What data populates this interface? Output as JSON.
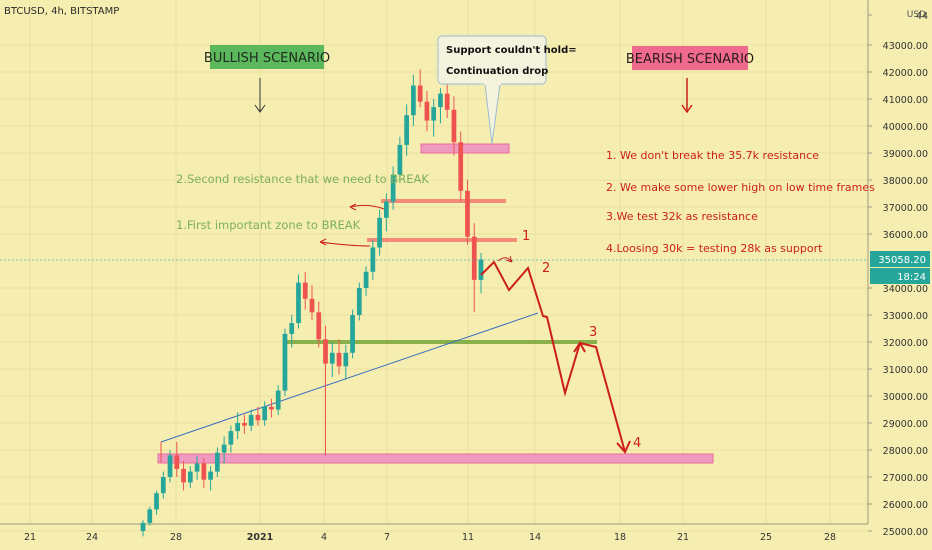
{
  "header": {
    "symbol_label": "BTCUSD, 4h, BITSTAMP"
  },
  "chart_data": {
    "type": "candlestick",
    "currency": "USD",
    "y_tick_labels": [
      "44",
      "43000.00",
      "42000.00",
      "41000.00",
      "40000.00",
      "39000.00",
      "38000.00",
      "37000.00",
      "36000.00",
      "34000.00",
      "33000.00",
      "32000.00",
      "31000.00",
      "30000.00",
      "29000.00",
      "28000.00",
      "27000.00",
      "26000.00",
      "25000.00"
    ],
    "x_tick_labels": [
      "21",
      "24",
      "28",
      "2021",
      "4",
      "7",
      "11",
      "14",
      "18",
      "21",
      "25",
      "28"
    ],
    "last_price": "35058.20",
    "countdown": "18:24",
    "colors": {
      "up": "#26a69a",
      "down": "#ef5350",
      "annotation": "#cc1f1a",
      "green_text": "#7db05a",
      "support_zone": "#ef9ac0",
      "resistance_line": "#f28b78",
      "support_line": "#8ab04a",
      "trendline": "#3a6fc0"
    },
    "annotations": {
      "bullish_title": "BULLISH SCENARIO",
      "bearish_title": "BEARISH SCENARIO",
      "callout_line1": "Support couldn't hold=",
      "callout_line2": "Continuation drop",
      "second_resistance": "2.Second resistance that we need to BREAK",
      "first_zone": "1.First important zone to BREAK",
      "bearish_points": [
        "1. We don't break the 35.7k resistance",
        "2. We make some lower high on low time frames",
        "3.We test 32k as resistance",
        "4.Loosing 30k = testing 28k as support"
      ],
      "path_labels": [
        "1",
        "2",
        "3",
        "4"
      ]
    },
    "levels": {
      "resistance_1": 35700,
      "resistance_2": 37300,
      "support_32k": 32000,
      "support_28k": 27800,
      "zone_top": 39200
    },
    "price_series_ohlc": [
      [
        25000,
        25400,
        24800,
        25300
      ],
      [
        25300,
        25900,
        25200,
        25800
      ],
      [
        25800,
        26500,
        25600,
        26400
      ],
      [
        26400,
        27200,
        26200,
        27000
      ],
      [
        27000,
        28000,
        26800,
        27800
      ],
      [
        27800,
        28300,
        27000,
        27300
      ],
      [
        27300,
        27600,
        26500,
        26800
      ],
      [
        26800,
        27400,
        26600,
        27200
      ],
      [
        27200,
        27800,
        26900,
        27500
      ],
      [
        27500,
        27700,
        26600,
        26900
      ],
      [
        26900,
        27400,
        26500,
        27200
      ],
      [
        27200,
        28100,
        27000,
        27900
      ],
      [
        27900,
        28500,
        27500,
        28200
      ],
      [
        28200,
        28900,
        27900,
        28700
      ],
      [
        28700,
        29400,
        28400,
        29000
      ],
      [
        29000,
        29300,
        28600,
        28900
      ],
      [
        28900,
        29500,
        28700,
        29300
      ],
      [
        29300,
        29600,
        28900,
        29100
      ],
      [
        29100,
        29800,
        28900,
        29600
      ],
      [
        29600,
        29900,
        29200,
        29500
      ],
      [
        29500,
        30400,
        29300,
        30200
      ],
      [
        30200,
        32500,
        30000,
        32300
      ],
      [
        32300,
        33000,
        31800,
        32700
      ],
      [
        32700,
        34500,
        32500,
        34200
      ],
      [
        34200,
        34600,
        33200,
        33600
      ],
      [
        33600,
        34100,
        32800,
        33100
      ],
      [
        33100,
        33500,
        31800,
        32100
      ],
      [
        32100,
        32600,
        27800,
        31200
      ],
      [
        31200,
        32000,
        30700,
        31600
      ],
      [
        31600,
        32100,
        30800,
        31100
      ],
      [
        31100,
        31900,
        30600,
        31600
      ],
      [
        31600,
        33200,
        31400,
        33000
      ],
      [
        33000,
        34200,
        32800,
        34000
      ],
      [
        34000,
        34800,
        33700,
        34600
      ],
      [
        34600,
        35800,
        34300,
        35500
      ],
      [
        35500,
        36900,
        35200,
        36600
      ],
      [
        36600,
        37500,
        36100,
        37200
      ],
      [
        37200,
        38500,
        36900,
        38200
      ],
      [
        38200,
        39600,
        37900,
        39300
      ],
      [
        39300,
        40800,
        38900,
        40400
      ],
      [
        40400,
        41900,
        40000,
        41500
      ],
      [
        41500,
        42100,
        40700,
        40900
      ],
      [
        40900,
        41300,
        39800,
        40200
      ],
      [
        40200,
        41000,
        39600,
        40700
      ],
      [
        40700,
        41400,
        40100,
        41200
      ],
      [
        41200,
        41600,
        40300,
        40600
      ],
      [
        40600,
        41100,
        38900,
        39400
      ],
      [
        39400,
        39800,
        37200,
        37600
      ],
      [
        37600,
        38000,
        35600,
        35900
      ],
      [
        35900,
        36400,
        33100,
        34300
      ],
      [
        34300,
        35300,
        33800,
        35058
      ]
    ]
  }
}
